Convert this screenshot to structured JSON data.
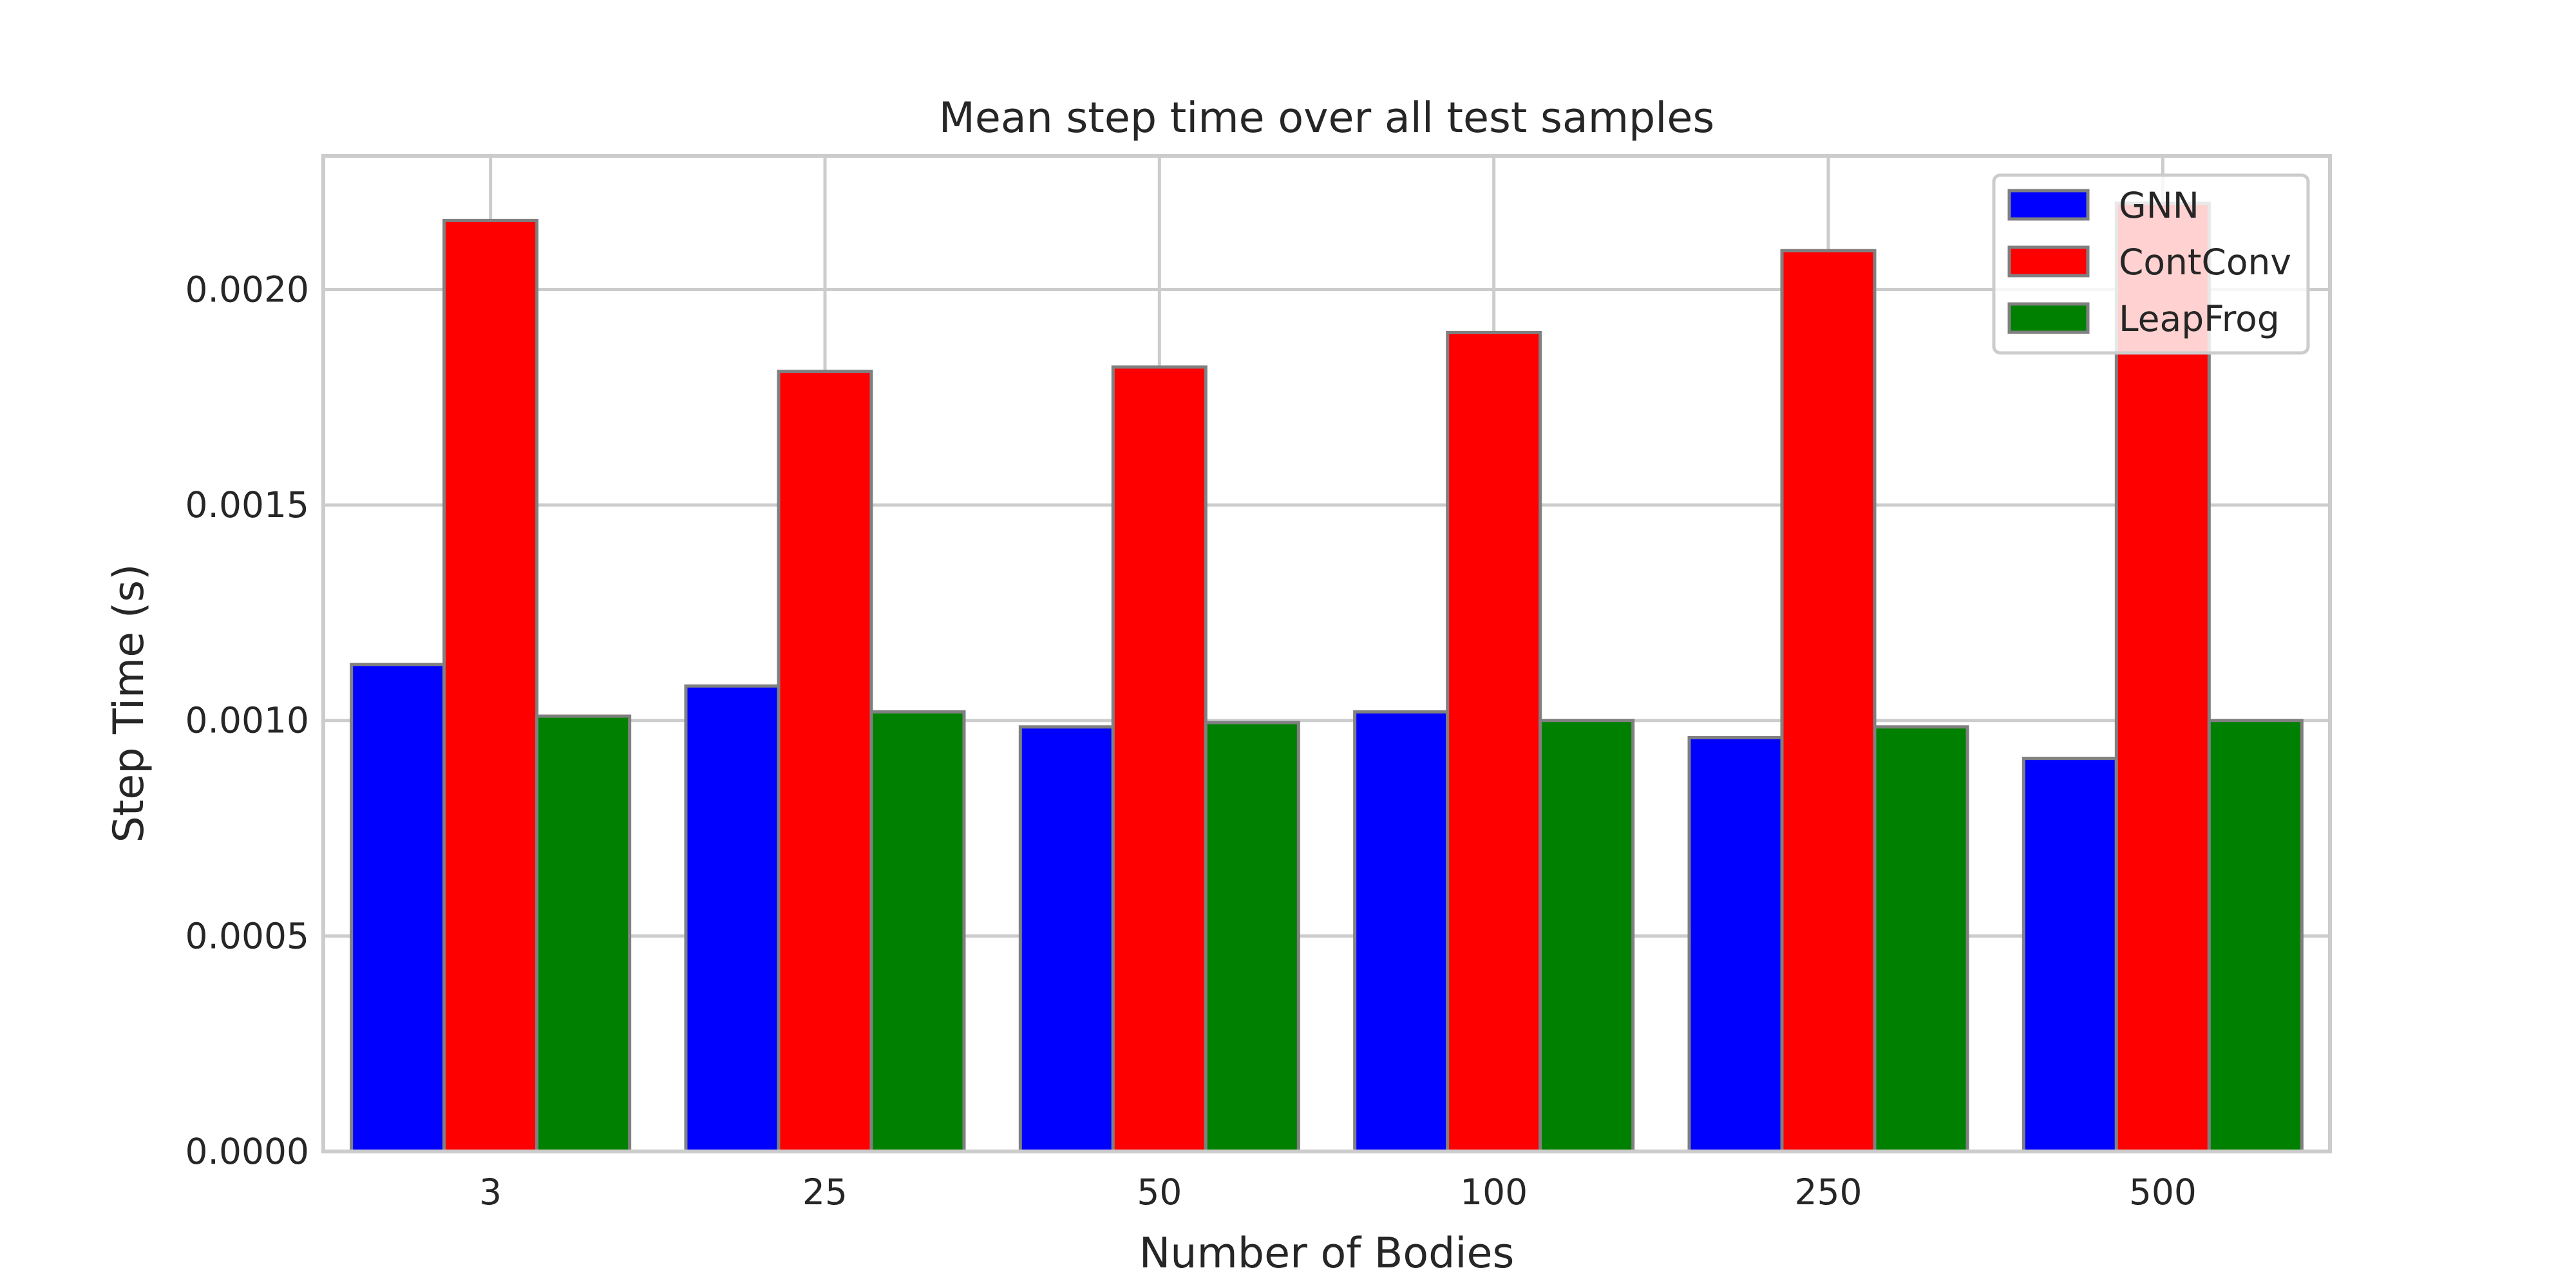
{
  "chart_data": {
    "type": "bar",
    "title": "Mean step time over all test samples",
    "xlabel": "Number of Bodies",
    "ylabel": "Step Time (s)",
    "categories": [
      "3",
      "25",
      "50",
      "100",
      "250",
      "500"
    ],
    "series": [
      {
        "name": "GNN",
        "color": "#0000ff",
        "values": [
          0.00113,
          0.00108,
          0.000985,
          0.00102,
          0.00096,
          0.000912
        ]
      },
      {
        "name": "ContConv",
        "color": "#ff0000",
        "values": [
          0.00216,
          0.00181,
          0.00182,
          0.0019,
          0.00209,
          0.0022
        ]
      },
      {
        "name": "LeapFrog",
        "color": "#008000",
        "values": [
          0.00101,
          0.00102,
          0.000995,
          0.001,
          0.000985,
          0.001
        ]
      }
    ],
    "ylim": [
      0,
      0.00231
    ],
    "yticks": [
      "0.0000",
      "0.0005",
      "0.0010",
      "0.0015",
      "0.0020"
    ],
    "grid": true,
    "legend_position": "top-right",
    "bar_edge_color": "#808080",
    "grid_color": "#cccccc",
    "text_color": "#262626"
  }
}
